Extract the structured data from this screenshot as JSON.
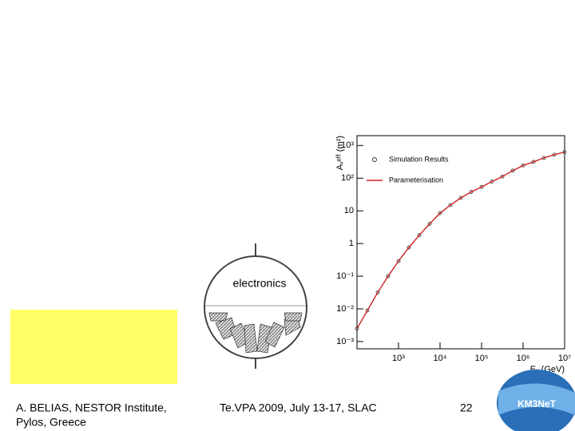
{
  "chart_data": {
    "type": "scatter-line",
    "y_label": "Aᵥᵉᶠᶠ (m²)",
    "x_label": "Eᵥ (GeV)",
    "log_x": true,
    "log_y": true,
    "legend": "top-left",
    "x": [
      100,
      178,
      316,
      562,
      1000,
      1778,
      3162,
      5623,
      10000,
      17783,
      31623,
      56234,
      100000,
      177828,
      316228,
      562341,
      1000000,
      1778279,
      3162278,
      5623413,
      10000000
    ],
    "series": [
      {
        "name": "Simulation Results",
        "color": "#333333",
        "kind": "points",
        "values": [
          0.0025,
          0.0089,
          0.032,
          0.1,
          0.29,
          0.76,
          1.8,
          4.0,
          8.5,
          15,
          25,
          38,
          54,
          79,
          112,
          170,
          245,
          316,
          417,
          525,
          631
        ]
      },
      {
        "name": "Parameterisation",
        "color": "#cc2222",
        "kind": "line",
        "values": [
          0.0025,
          0.0089,
          0.032,
          0.1,
          0.29,
          0.76,
          1.8,
          4.0,
          8.5,
          15,
          25,
          38,
          54,
          79,
          112,
          170,
          245,
          316,
          417,
          525,
          631
        ]
      }
    ],
    "xlim": [
      100,
      10000000
    ],
    "ylim": [
      0.0006,
      2000
    ],
    "xticks": [
      {
        "value": 1000,
        "label": "10³"
      },
      {
        "value": 10000,
        "label": "10⁴"
      },
      {
        "value": 100000,
        "label": "10⁵"
      },
      {
        "value": 1000000,
        "label": "10⁶"
      },
      {
        "value": 10000000,
        "label": "10⁷"
      }
    ],
    "yticks": [
      {
        "value": 0.001,
        "label": "10⁻³"
      },
      {
        "value": 0.01,
        "label": "10⁻²"
      },
      {
        "value": 0.1,
        "label": "10⁻¹"
      },
      1,
      10,
      {
        "value": 100,
        "label": "10²"
      },
      {
        "value": 1000,
        "label": "10³"
      }
    ]
  },
  "diagram": {
    "label": "electronics"
  },
  "footer": {
    "author": [
      "A. BELIAS, NESTOR Institute,",
      "Pylos, Greece"
    ],
    "event": "Te.VPA 2009, July 13-17, SLAC",
    "page": "22"
  },
  "logo": {
    "text": "KM3NeT"
  }
}
